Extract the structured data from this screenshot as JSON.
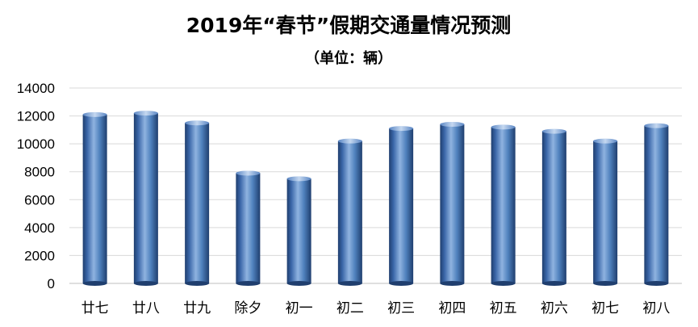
{
  "chart_data": {
    "type": "bar",
    "title": "2019年“春节”假期交通量情况预测",
    "subtitle": "（单位：辆）",
    "xlabel": "",
    "ylabel": "",
    "categories": [
      "廿七",
      "廿八",
      "廿九",
      "除夕",
      "初一",
      "初二",
      "初三",
      "初四",
      "初五",
      "初六",
      "初七",
      "初八"
    ],
    "values": [
      12100,
      12200,
      11500,
      7900,
      7500,
      10200,
      11100,
      11400,
      11200,
      10900,
      10200,
      11300
    ],
    "ylim": [
      0,
      14000
    ],
    "yticks": [
      "0",
      "2000",
      "4000",
      "6000",
      "8000",
      "10000",
      "12000",
      "14000"
    ],
    "grid": true,
    "legend": "none",
    "colors": {
      "bar_mid": "#4f81bd",
      "bar_light": "#8fb3e0",
      "bar_dark": "#1f3e6e"
    }
  }
}
